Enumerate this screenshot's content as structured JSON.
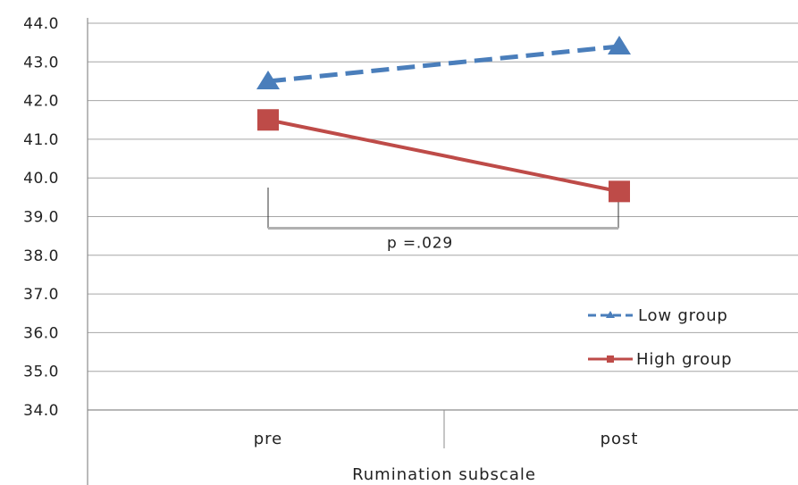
{
  "chart_data": {
    "type": "line",
    "categories": [
      "pre",
      "post"
    ],
    "series": [
      {
        "name": "Low group",
        "values": [
          42.5,
          43.4
        ],
        "color": "#4a7ebb",
        "line_style": "dashed",
        "marker": "triangle"
      },
      {
        "name": "High group",
        "values": [
          41.5,
          39.65
        ],
        "color": "#be4b48",
        "line_style": "solid",
        "marker": "square"
      }
    ],
    "xlabel": "Rumination subscale",
    "ylabel": "",
    "ylim": [
      34.0,
      44.0
    ],
    "yticks": [
      "34.0",
      "35.0",
      "36.0",
      "37.0",
      "38.0",
      "39.0",
      "40.0",
      "41.0",
      "42.0",
      "43.0",
      "44.0"
    ],
    "grid": true,
    "legend": "right",
    "annotation": {
      "text": "p =.029",
      "bracket_y": 38.7,
      "left_top_y": 39.75,
      "right_top_y": 39.4
    }
  }
}
